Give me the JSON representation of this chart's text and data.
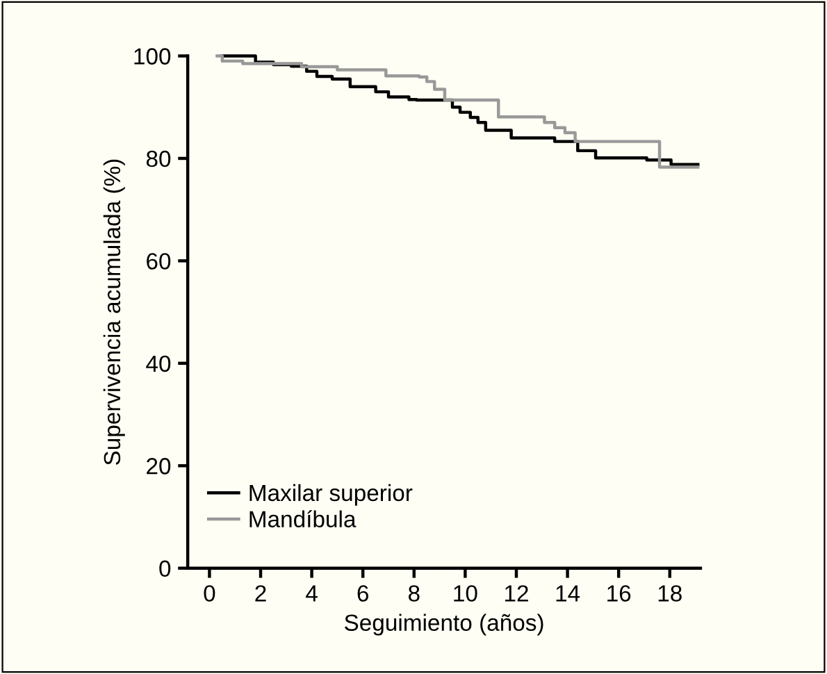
{
  "chart_data": {
    "type": "step",
    "xlabel": "Seguimiento (años)",
    "ylabel": "Supervivencia acumulada (%)",
    "xlim": [
      -0.85,
      19.2
    ],
    "ylim": [
      0,
      100
    ],
    "xticks": [
      0,
      2,
      4,
      6,
      8,
      10,
      12,
      14,
      16,
      18
    ],
    "yticks": [
      0,
      20,
      40,
      60,
      80,
      100
    ],
    "grid": false,
    "legend": "bottom left",
    "marker": "none",
    "line_style": "solid",
    "series": [
      {
        "name": "Maxilar superior",
        "color": "#000000",
        "x": [
          0.5,
          1.8,
          2.5,
          3.2,
          3.8,
          4.2,
          4.8,
          5.5,
          6.5,
          7,
          7.8,
          8.1,
          9.5,
          9.8,
          10.2,
          10.5,
          10.8,
          11.8,
          13.5,
          14.4,
          15.1,
          17.1,
          18.05,
          19.1
        ],
        "values": [
          100,
          98.8,
          98.3,
          98,
          97,
          96,
          95.5,
          94,
          93,
          92,
          91.5,
          91.4,
          90,
          89,
          88,
          87,
          85.5,
          84,
          83.3,
          81.5,
          80.1,
          79.7,
          78.8,
          78.8
        ]
      },
      {
        "name": "Mandíbula",
        "color": "#999999",
        "x": [
          0.3,
          0.5,
          1.3,
          3.6,
          5.0,
          6.9,
          8.2,
          8.5,
          8.8,
          9.2,
          11.3,
          13.1,
          13.5,
          13.9,
          14.3,
          17.6,
          19.1
        ],
        "values": [
          100,
          99,
          98.5,
          97.9,
          97.3,
          96.1,
          95.9,
          95,
          93.5,
          91.4,
          88.1,
          87,
          86,
          85,
          83.3,
          78.3,
          78.3
        ]
      }
    ]
  }
}
